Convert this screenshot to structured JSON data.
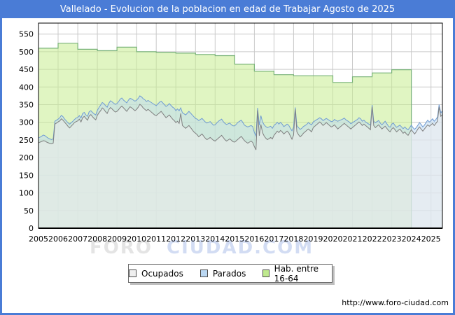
{
  "header": {
    "title": "Vallelado - Evolucion de la poblacion en edad de Trabajar Agosto de 2025"
  },
  "footer": {
    "url": "http://www.foro-ciudad.com"
  },
  "watermark": {
    "part1": "FORO",
    "part2": "CIUDAD.COM"
  },
  "legend": {
    "position": "bottom-center",
    "items": [
      {
        "label": "Ocupados",
        "swatch": "#efefef"
      },
      {
        "label": "Parados",
        "swatch": "#bad7f2"
      },
      {
        "label": "Hab. entre 16-64",
        "swatch": "#bfe98e"
      }
    ]
  },
  "chart_data": {
    "type": "area",
    "title": "Vallelado - Evolucion de la poblacion en edad de Trabajar Agosto de 2025",
    "grid": true,
    "legend_position": "bottom-center",
    "x_axis": {
      "start": "2005-01",
      "end": "2025-08",
      "tick_years": [
        2005,
        2006,
        2007,
        2008,
        2009,
        2010,
        2011,
        2012,
        2013,
        2014,
        2015,
        2016,
        2017,
        2018,
        2019,
        2020,
        2021,
        2022,
        2023,
        2024,
        2025
      ]
    },
    "y_axis": {
      "ticks": [
        0,
        50,
        100,
        150,
        200,
        250,
        300,
        350,
        400,
        450,
        500,
        550
      ],
      "ylim": [
        0,
        580
      ]
    },
    "colors": {
      "frame_blue": "#4a7cd6",
      "gridline": "#c9c9c9",
      "axis": "#000000"
    },
    "series": [
      {
        "name": "Ocupados",
        "resolution": "monthly",
        "start": "2005-01",
        "line_color": "#7f7f7f",
        "fill_color": "#ededed",
        "values": [
          242,
          244,
          246,
          248,
          247,
          244,
          242,
          240,
          239,
          241,
          295,
          298,
          301,
          304,
          310,
          306,
          300,
          295,
          289,
          284,
          289,
          294,
          299,
          302,
          304,
          309,
          301,
          313,
          317,
          311,
          306,
          318,
          322,
          316,
          311,
          307,
          320,
          327,
          333,
          341,
          337,
          330,
          325,
          336,
          342,
          338,
          333,
          329,
          331,
          336,
          342,
          346,
          341,
          336,
          331,
          338,
          344,
          341,
          337,
          333,
          337,
          343,
          351,
          347,
          341,
          337,
          333,
          337,
          333,
          329,
          325,
          321,
          319,
          323,
          327,
          331,
          325,
          319,
          313,
          317,
          321,
          315,
          309,
          305,
          299,
          303,
          297,
          325,
          291,
          287,
          283,
          287,
          291,
          285,
          279,
          273,
          269,
          265,
          259,
          263,
          267,
          261,
          255,
          251,
          254,
          257,
          253,
          249,
          247,
          251,
          255,
          259,
          263,
          257,
          251,
          247,
          250,
          253,
          249,
          245,
          244,
          248,
          252,
          256,
          260,
          254,
          248,
          244,
          241,
          244,
          247,
          243,
          231,
          222,
          334,
          262,
          294,
          271,
          261,
          255,
          251,
          254,
          257,
          253,
          263,
          269,
          275,
          271,
          277,
          273,
          267,
          271,
          275,
          271,
          261,
          252,
          264,
          337,
          273,
          265,
          259,
          263,
          269,
          273,
          277,
          281,
          277,
          273,
          285,
          289,
          293,
          297,
          301,
          297,
          291,
          295,
          299,
          295,
          291,
          287,
          289,
          293,
          287,
          281,
          285,
          289,
          293,
          297,
          293,
          289,
          285,
          281,
          285,
          289,
          293,
          297,
          301,
          297,
          291,
          295,
          291,
          287,
          283,
          279,
          344,
          291,
          285,
          289,
          293,
          287,
          281,
          285,
          289,
          283,
          277,
          273,
          281,
          285,
          279,
          273,
          277,
          281,
          275,
          269,
          273,
          267,
          263,
          271,
          279,
          273,
          267,
          273,
          281,
          287,
          281,
          275,
          281,
          287,
          293,
          289,
          293,
          297,
          291,
          297,
          303,
          344,
          317,
          322
        ]
      },
      {
        "name": "Parados",
        "resolution": "monthly",
        "start": "2005-01",
        "stacked_on": "Ocupados",
        "line_color": "#6f9bd2",
        "fill_color": "#bfdbf2",
        "values": [
          14,
          14,
          15,
          16,
          15,
          14,
          13,
          13,
          12,
          12,
          8,
          8,
          8,
          9,
          10,
          10,
          9,
          9,
          10,
          11,
          10,
          9,
          9,
          10,
          10,
          10,
          11,
          12,
          11,
          10,
          11,
          12,
          11,
          12,
          13,
          14,
          14,
          15,
          16,
          15,
          16,
          17,
          18,
          18,
          19,
          20,
          21,
          22,
          22,
          23,
          24,
          23,
          22,
          23,
          24,
          25,
          24,
          25,
          26,
          27,
          26,
          25,
          24,
          25,
          26,
          27,
          26,
          25,
          26,
          27,
          28,
          29,
          28,
          29,
          30,
          29,
          30,
          31,
          32,
          31,
          32,
          33,
          34,
          35,
          34,
          35,
          36,
          16,
          36,
          37,
          38,
          39,
          40,
          41,
          42,
          43,
          42,
          44,
          46,
          45,
          44,
          45,
          46,
          47,
          46,
          45,
          44,
          43,
          46,
          47,
          48,
          47,
          46,
          45,
          46,
          47,
          46,
          45,
          44,
          45,
          46,
          47,
          48,
          47,
          46,
          45,
          44,
          45,
          46,
          45,
          44,
          45,
          40,
          40,
          7,
          30,
          25,
          30,
          32,
          33,
          34,
          33,
          32,
          30,
          28,
          26,
          25,
          24,
          23,
          22,
          21,
          20,
          20,
          21,
          22,
          24,
          22,
          5,
          18,
          20,
          21,
          20,
          19,
          18,
          17,
          18,
          19,
          20,
          16,
          15,
          14,
          13,
          12,
          13,
          14,
          13,
          12,
          13,
          14,
          15,
          14,
          15,
          18,
          22,
          20,
          18,
          16,
          15,
          14,
          15,
          16,
          15,
          14,
          13,
          12,
          11,
          12,
          13,
          12,
          11,
          10,
          11,
          12,
          13,
          5,
          12,
          14,
          13,
          12,
          11,
          12,
          13,
          14,
          13,
          12,
          13,
          14,
          13,
          12,
          13,
          12,
          11,
          12,
          13,
          14,
          15,
          16,
          14,
          13,
          12,
          13,
          12,
          11,
          12,
          13,
          12,
          11,
          12,
          13,
          12,
          12,
          13,
          12,
          11,
          12,
          6,
          10,
          10
        ]
      },
      {
        "name": "Hab. entre 16-64",
        "resolution": "annual",
        "years": [
          2005,
          2006,
          2007,
          2008,
          2009,
          2010,
          2011,
          2012,
          2013,
          2014,
          2015,
          2016,
          2017,
          2018,
          2019,
          2020,
          2021,
          2022,
          2023
        ],
        "line_color": "#79b379",
        "fill_color": "#c7ed90",
        "values": [
          510,
          524,
          507,
          503,
          513,
          500,
          498,
          496,
          492,
          489,
          465,
          445,
          435,
          432,
          432,
          413,
          429,
          440,
          449
        ]
      }
    ]
  }
}
